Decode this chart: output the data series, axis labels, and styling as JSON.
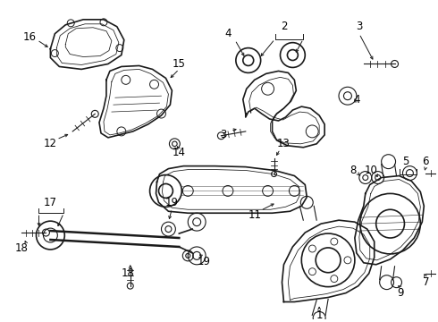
{
  "background_color": "#ffffff",
  "line_color": "#1a1a1a",
  "text_color": "#000000",
  "fig_width": 4.9,
  "fig_height": 3.6,
  "dpi": 100
}
